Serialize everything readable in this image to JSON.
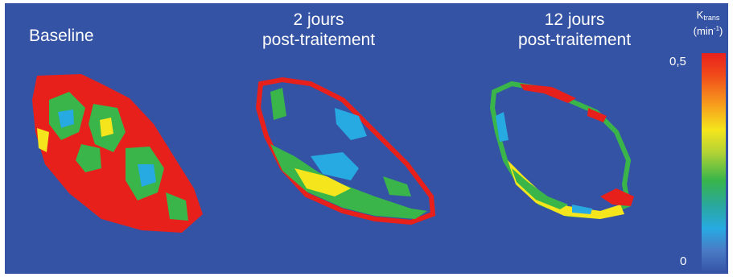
{
  "panels": [
    {
      "title_lines": [
        "Baseline"
      ]
    },
    {
      "title_lines": [
        "2 jours",
        "post-traitement"
      ]
    },
    {
      "title_lines": [
        "12 jours",
        "post-traitement"
      ]
    }
  ],
  "colorbar": {
    "title_main": "K",
    "title_sub": "trans",
    "unit_prefix": "(min",
    "unit_sup": "-1",
    "unit_suffix": ")",
    "max_label": "0,5",
    "min_label": "0"
  },
  "colors": {
    "background": "#3553a4",
    "red": "#e8201c",
    "yellow": "#f5e51c",
    "green": "#39b54a",
    "cyan": "#27aae1"
  }
}
